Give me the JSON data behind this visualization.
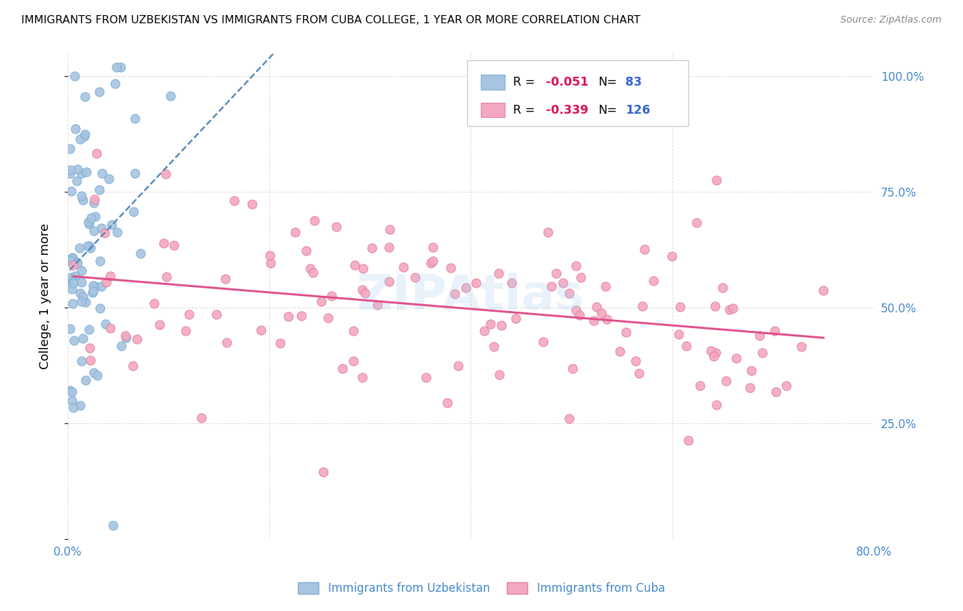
{
  "title": "IMMIGRANTS FROM UZBEKISTAN VS IMMIGRANTS FROM CUBA COLLEGE, 1 YEAR OR MORE CORRELATION CHART",
  "source": "Source: ZipAtlas.com",
  "ylabel": "College, 1 year or more",
  "xlim": [
    0.0,
    0.8
  ],
  "ylim": [
    0.0,
    1.05
  ],
  "x_tick_positions": [
    0.0,
    0.2,
    0.4,
    0.6,
    0.8
  ],
  "x_tick_labels": [
    "0.0%",
    "",
    "",
    "",
    "80.0%"
  ],
  "y_ticks": [
    0.0,
    0.25,
    0.5,
    0.75,
    1.0
  ],
  "y_tick_labels_right": [
    "",
    "25.0%",
    "50.0%",
    "75.0%",
    "100.0%"
  ],
  "uzbekistan_R": -0.051,
  "uzbekistan_N": 83,
  "cuba_R": -0.339,
  "cuba_N": 126,
  "uzbekistan_color": "#a8c4e0",
  "uzbekistan_edge_color": "#7aafd4",
  "cuba_color": "#f4a8c0",
  "cuba_edge_color": "#e080a0",
  "uzbekistan_line_color": "#5588bb",
  "cuba_line_color": "#e0508a",
  "background_color": "#ffffff",
  "grid_color": "#cccccc",
  "watermark": "ZIPAtlas",
  "legend_uzbekistan": "Immigrants from Uzbekistan",
  "legend_cuba": "Immigrants from Cuba",
  "title_color": "#000000",
  "source_color": "#888888",
  "axis_label_color": "#4488cc",
  "r_color": "#dd1155",
  "n_color": "#3366cc",
  "seed": 12345
}
